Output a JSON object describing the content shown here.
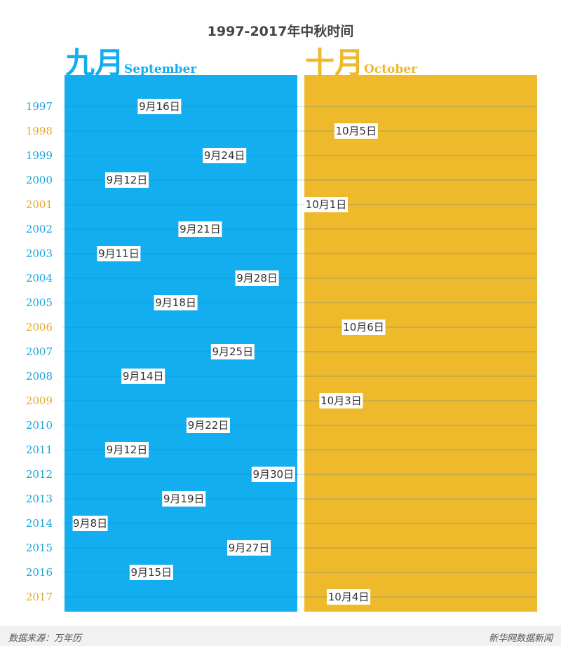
{
  "chart_data": {
    "type": "scatter",
    "title": "1997-2017年中秋时间",
    "panels": [
      {
        "zh": "九月",
        "en": "September",
        "color": "#12aeef"
      },
      {
        "zh": "十月",
        "en": "October",
        "color": "#efb92c"
      }
    ],
    "categories": [
      "1997",
      "1998",
      "1999",
      "2000",
      "2001",
      "2002",
      "2003",
      "2004",
      "2005",
      "2006",
      "2007",
      "2008",
      "2009",
      "2010",
      "2011",
      "2012",
      "2013",
      "2014",
      "2015",
      "2016",
      "2017"
    ],
    "series": [
      {
        "values": [
          {
            "year": "1997",
            "month": 9,
            "day": 16,
            "label": "9月16日"
          },
          {
            "year": "1998",
            "month": 10,
            "day": 5,
            "label": "10月5日"
          },
          {
            "year": "1999",
            "month": 9,
            "day": 24,
            "label": "9月24日"
          },
          {
            "year": "2000",
            "month": 9,
            "day": 12,
            "label": "9月12日"
          },
          {
            "year": "2001",
            "month": 10,
            "day": 1,
            "label": "10月1日"
          },
          {
            "year": "2002",
            "month": 9,
            "day": 21,
            "label": "9月21日"
          },
          {
            "year": "2003",
            "month": 9,
            "day": 11,
            "label": "9月11日"
          },
          {
            "year": "2004",
            "month": 9,
            "day": 28,
            "label": "9月28日"
          },
          {
            "year": "2005",
            "month": 9,
            "day": 18,
            "label": "9月18日"
          },
          {
            "year": "2006",
            "month": 10,
            "day": 6,
            "label": "10月6日"
          },
          {
            "year": "2007",
            "month": 9,
            "day": 25,
            "label": "9月25日"
          },
          {
            "year": "2008",
            "month": 9,
            "day": 14,
            "label": "9月14日"
          },
          {
            "year": "2009",
            "month": 10,
            "day": 3,
            "label": "10月3日"
          },
          {
            "year": "2010",
            "month": 9,
            "day": 22,
            "label": "9月22日"
          },
          {
            "year": "2011",
            "month": 9,
            "day": 12,
            "label": "9月12日"
          },
          {
            "year": "2012",
            "month": 9,
            "day": 30,
            "label": "9月30日"
          },
          {
            "year": "2013",
            "month": 9,
            "day": 19,
            "label": "9月19日"
          },
          {
            "year": "2014",
            "month": 9,
            "day": 8,
            "label": "9月8日"
          },
          {
            "year": "2015",
            "month": 9,
            "day": 27,
            "label": "9月27日"
          },
          {
            "year": "2016",
            "month": 9,
            "day": 15,
            "label": "9月15日"
          },
          {
            "year": "2017",
            "month": 10,
            "day": 4,
            "label": "10月4日"
          }
        ]
      }
    ],
    "colors": {
      "september": "#12aeef",
      "october": "#efb92c",
      "gridline": "#1a7fae",
      "label_bg": "#ffffff",
      "year_september": "#1aa5dc",
      "year_october": "#e4a92a"
    },
    "grid": true,
    "legend": "none"
  },
  "footer": {
    "source": "数据来源：万年历",
    "credit": "新华网数据新闻"
  }
}
